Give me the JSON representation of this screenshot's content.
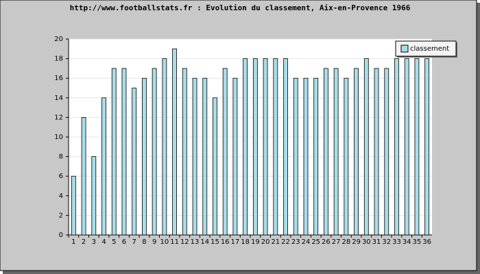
{
  "chart_data": {
    "type": "bar",
    "title": "http://www.footballstats.fr : Evolution du classement, Aix-en-Provence 1966",
    "categories": [
      "1",
      "2",
      "3",
      "4",
      "5",
      "6",
      "7",
      "8",
      "9",
      "10",
      "11",
      "12",
      "13",
      "14",
      "15",
      "16",
      "17",
      "18",
      "19",
      "20",
      "21",
      "22",
      "23",
      "24",
      "25",
      "26",
      "27",
      "28",
      "29",
      "30",
      "31",
      "32",
      "33",
      "34",
      "35",
      "36"
    ],
    "series": [
      {
        "name": "classement",
        "color": "#aadde8",
        "values": [
          6,
          12,
          8,
          14,
          17,
          17,
          15,
          16,
          17,
          18,
          19,
          17,
          16,
          16,
          14,
          17,
          16,
          18,
          18,
          18,
          18,
          18,
          16,
          16,
          16,
          17,
          17,
          16,
          17,
          18,
          17,
          17,
          18,
          18,
          18,
          18
        ]
      }
    ],
    "ylim": [
      0,
      20
    ],
    "yticks": [
      0,
      2,
      4,
      6,
      8,
      10,
      12,
      14,
      16,
      18,
      20
    ],
    "grid": true,
    "legend": "top-right"
  }
}
